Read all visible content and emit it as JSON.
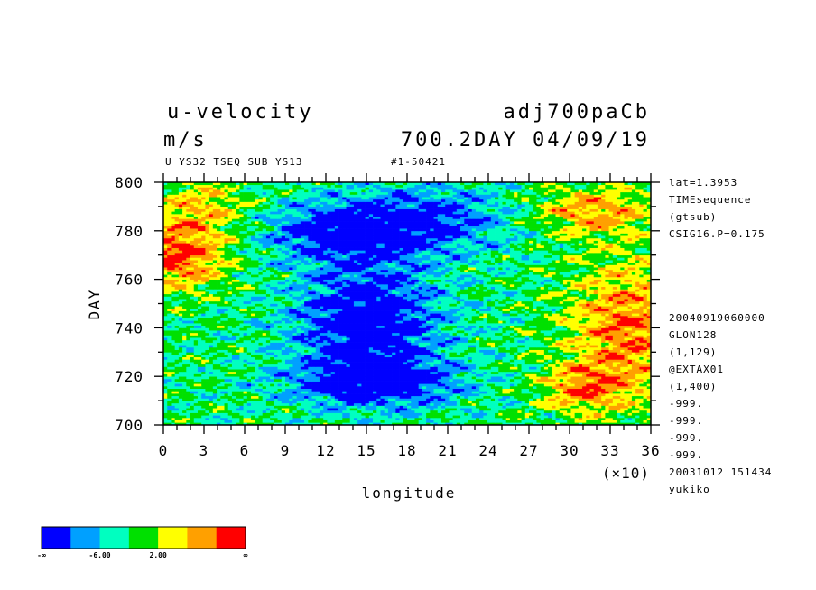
{
  "header": {
    "title_left": "u-velocity",
    "title_right": "adj700paCb",
    "units": "m/s",
    "subtitle_right": "700.2DAY 04/09/19",
    "info_left": "U YS32 TSEQ SUB YS13",
    "info_right": "#1-50421"
  },
  "side_info": {
    "top": [
      "lat=1.3953",
      "TIMEsequence",
      "(gtsub)",
      "CSIG16.P=0.175"
    ],
    "bottom": [
      "20040919060000",
      "GLON128",
      "(1,129)",
      "@EXTAX01",
      "(1,400)",
      "-999.",
      "-999.",
      "-999.",
      "-999.",
      "20031012 151434",
      "yukiko"
    ]
  },
  "chart_data": {
    "type": "heatmap",
    "xlabel": "longitude",
    "ylabel": "DAY",
    "x_multiplier_label": "(×10)",
    "xlim": [
      0,
      36
    ],
    "ylim": [
      700,
      800
    ],
    "x_ticks": [
      "0",
      "3",
      "6",
      "9",
      "12",
      "15",
      "18",
      "21",
      "24",
      "27",
      "30",
      "33",
      "36"
    ],
    "y_ticks": [
      "700",
      "720",
      "740",
      "760",
      "780",
      "800"
    ],
    "colorbar": {
      "colors": [
        "#0000ff",
        "#00a0ff",
        "#00ffc0",
        "#00e000",
        "#ffff00",
        "#ffa000",
        "#ff0000"
      ],
      "labels": [
        "-∞",
        "-6.00",
        "2.00",
        "∞"
      ]
    }
  }
}
